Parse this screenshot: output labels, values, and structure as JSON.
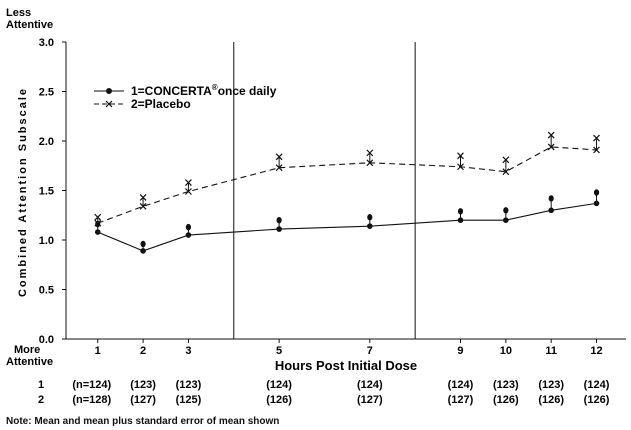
{
  "chart_data": {
    "type": "line",
    "title": "",
    "xlabel": "Hours Post Initial Dose",
    "ylabel": "Combined Attention Subscale",
    "y_top_label": [
      "Less",
      "Attentive"
    ],
    "y_bottom_label": [
      "More",
      "Attentive"
    ],
    "ylim": [
      0,
      3.0
    ],
    "yticks": [
      "0.0",
      "0.5",
      "1.0",
      "1.5",
      "2.0",
      "2.5",
      "3.0"
    ],
    "x": [
      1,
      2,
      3,
      5,
      7,
      9,
      10,
      11,
      12
    ],
    "xticks": [
      "1",
      "2",
      "3",
      "5",
      "7",
      "9",
      "10",
      "11",
      "12"
    ],
    "session_dividers": [
      0.3,
      4.0,
      8.0
    ],
    "grid": false,
    "legend_placement": "top-left",
    "series": [
      {
        "name": "1=CONCERTA® once daily",
        "legend_main": "1=CONCERTA",
        "legend_sup": "®",
        "legend_rest": "once daily",
        "marker": "filled-circle",
        "line": "solid",
        "mean": [
          1.08,
          0.89,
          1.05,
          1.11,
          1.14,
          1.2,
          1.2,
          1.3,
          1.37
        ],
        "mean_plus_se": [
          1.16,
          0.96,
          1.13,
          1.2,
          1.23,
          1.29,
          1.3,
          1.42,
          1.48
        ]
      },
      {
        "name": "2=Placebo",
        "legend_main": "2=Placebo",
        "marker": "x",
        "line": "dashed",
        "mean": [
          1.17,
          1.34,
          1.49,
          1.73,
          1.78,
          1.74,
          1.69,
          1.94,
          1.91
        ],
        "mean_plus_se": [
          1.23,
          1.43,
          1.58,
          1.84,
          1.88,
          1.85,
          1.81,
          2.06,
          2.03
        ]
      }
    ],
    "n_rows": [
      {
        "label": "1",
        "values": [
          "(n=124)",
          "(123)",
          "(123)",
          "(124)",
          "(124)",
          "(124)",
          "(123)",
          "(123)",
          "(124)"
        ]
      },
      {
        "label": "2",
        "values": [
          "(n=128)",
          "(127)",
          "(125)",
          "(126)",
          "(127)",
          "(127)",
          "(126)",
          "(126)",
          "(126)"
        ]
      }
    ],
    "note": "Note:  Mean and mean plus standard error of mean shown"
  }
}
